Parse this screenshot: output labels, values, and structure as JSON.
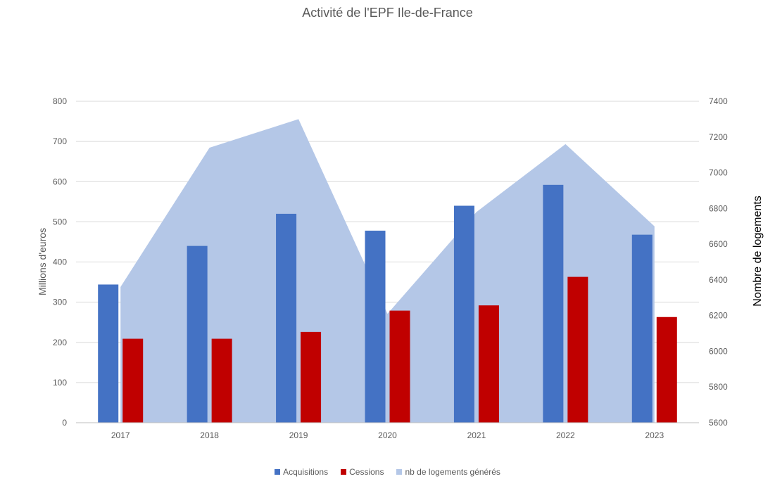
{
  "chart_data": {
    "type": "bar",
    "title": "Activité de l'EPF Ile-de-France",
    "categories": [
      "2017",
      "2018",
      "2019",
      "2020",
      "2021",
      "2022",
      "2023"
    ],
    "series": [
      {
        "name": "Acquisitions",
        "type": "bar",
        "axis": "left",
        "color": "#4472C4",
        "values": [
          344,
          440,
          520,
          478,
          540,
          592,
          468
        ]
      },
      {
        "name": "Cessions",
        "type": "bar",
        "axis": "left",
        "color": "#C00000",
        "values": [
          209,
          209,
          226,
          279,
          292,
          363,
          263
        ]
      },
      {
        "name": "nb de logements générés",
        "type": "area",
        "axis": "right",
        "color": "#B4C7E7",
        "values": [
          6360,
          7140,
          7300,
          6210,
          6780,
          7160,
          6700
        ]
      }
    ],
    "ylabel": "Millions d'euros",
    "ylim": [
      0,
      800
    ],
    "yticks": [
      "0",
      "100",
      "200",
      "300",
      "400",
      "500",
      "600",
      "700",
      "800"
    ],
    "y2label": "Nombre de logements",
    "y2lim": [
      5600,
      7400
    ],
    "y2ticks": [
      "5600",
      "5800",
      "6000",
      "6200",
      "6400",
      "6600",
      "6800",
      "7000",
      "7200",
      "7400"
    ],
    "grid": true,
    "legend_position": "bottom"
  }
}
